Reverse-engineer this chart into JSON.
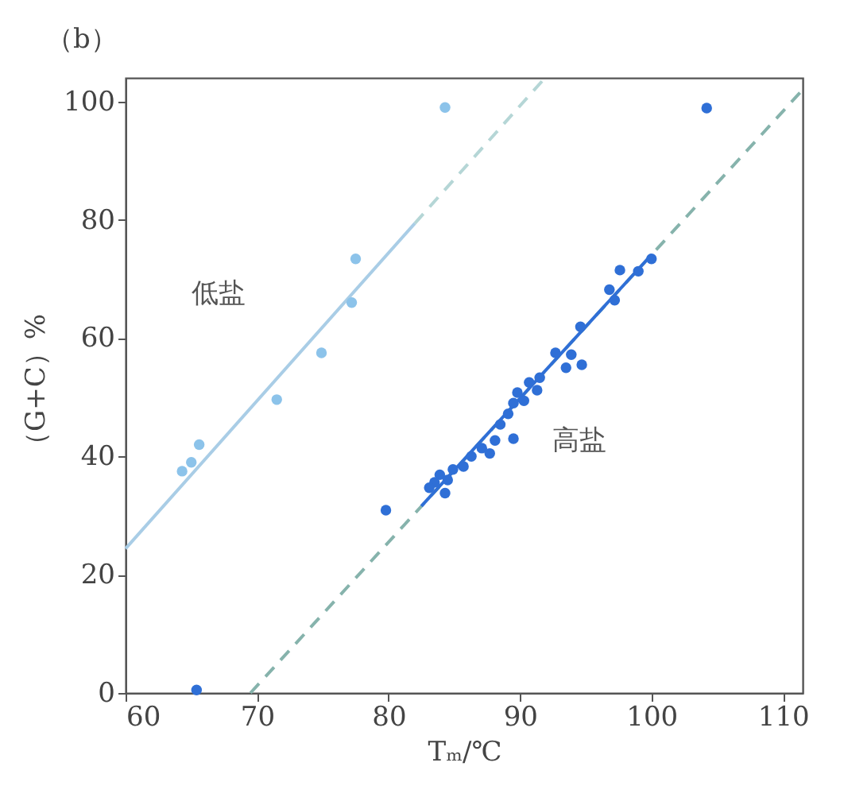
{
  "chart_data": {
    "type": "scatter",
    "title": "（b）",
    "xlabel": "Tₘ/℃",
    "ylabel": "（G+C）%",
    "xlim": [
      60,
      111.5
    ],
    "ylim": [
      0,
      104
    ],
    "xticks": [
      60,
      70,
      80,
      90,
      100,
      110
    ],
    "yticks": [
      0,
      20,
      40,
      60,
      80,
      100
    ],
    "grid": false,
    "marker": "circle",
    "series": [
      {
        "type": "line",
        "color": "#b5d6d6",
        "line_style": "dashed",
        "marker": "none",
        "x": [
          82,
          91.9
        ],
        "values": [
          79.4,
          104
        ]
      },
      {
        "type": "line",
        "color": "#a9cde6",
        "line_style": "solid",
        "marker": "none",
        "x": [
          60,
          82
        ],
        "values": [
          24.4,
          79.4
        ]
      },
      {
        "type": "line",
        "color": "#86b3ac",
        "line_style": "dashed",
        "marker": "none",
        "x": [
          69.5,
          111.5
        ],
        "values": [
          0,
          102
        ]
      },
      {
        "type": "line",
        "color": "#2f6fd6",
        "line_style": "solid",
        "marker": "none",
        "x": [
          82.5,
          100
        ],
        "values": [
          31.6,
          74.1
        ]
      },
      {
        "name": "低盐",
        "color": "#8cc3ea",
        "x": [
          84.3,
          77.5,
          77.2,
          74.9,
          71.5,
          65.6,
          65.0,
          64.3
        ],
        "values": [
          99.0,
          73.4,
          66.0,
          57.5,
          49.6,
          42.0,
          39.0,
          37.5
        ]
      },
      {
        "name": "高盐",
        "color": "#2f6fd6",
        "x": [
          104.2,
          65.4,
          79.8,
          100.0,
          99.0,
          97.6,
          96.8,
          97.2,
          94.6,
          92.7,
          93.9,
          94.7,
          93.5,
          91.5,
          90.7,
          89.8,
          91.3,
          90.3,
          89.5,
          89.1,
          88.5,
          89.5,
          88.1,
          87.1,
          87.7,
          86.3,
          85.7,
          84.9,
          83.9,
          83.5,
          84.5,
          84.3,
          83.1
        ],
        "values": [
          98.9,
          0.5,
          30.9,
          73.4,
          71.3,
          71.5,
          68.2,
          66.4,
          61.9,
          57.5,
          57.2,
          55.5,
          55.0,
          53.3,
          52.5,
          50.8,
          51.2,
          49.4,
          49.0,
          47.2,
          45.4,
          43.0,
          42.7,
          41.4,
          40.5,
          40.0,
          38.3,
          37.8,
          36.9,
          35.6,
          36.0,
          33.8,
          34.7
        ]
      }
    ]
  }
}
